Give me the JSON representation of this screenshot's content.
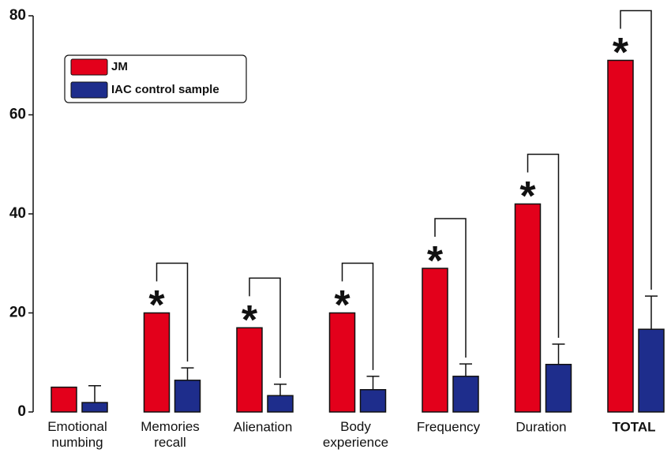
{
  "chart_data": {
    "type": "bar",
    "categories": [
      "Emotional numbing",
      "Memories recall",
      "Alienation",
      "Body experience",
      "Frequency",
      "Duration",
      "TOTAL"
    ],
    "series": [
      {
        "name": "JM",
        "color": "#e3001b",
        "values": [
          5,
          20,
          17,
          20,
          29,
          42,
          71
        ]
      },
      {
        "name": "IAC control sample",
        "color": "#1e2d8c",
        "values": [
          1.9,
          6.4,
          3.3,
          4.5,
          7.2,
          9.6,
          16.7
        ],
        "errors": [
          3.4,
          2.5,
          2.3,
          2.7,
          2.5,
          4.1,
          6.7
        ]
      }
    ],
    "significant": [
      false,
      true,
      true,
      true,
      true,
      true,
      true
    ],
    "significance_marker": "*",
    "ylim": [
      0,
      80
    ],
    "yticks": [
      0,
      20,
      40,
      60,
      80
    ]
  }
}
